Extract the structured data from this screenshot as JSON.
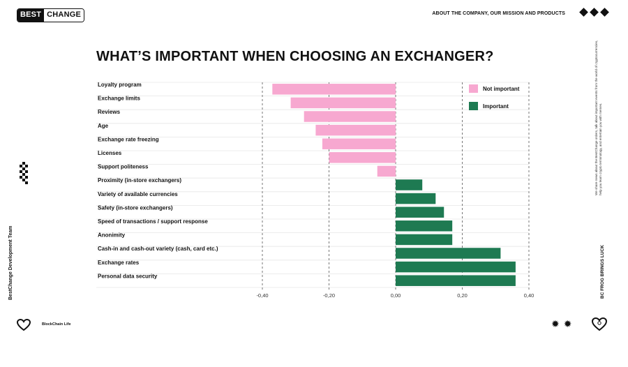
{
  "header": {
    "logo_best": "BEST",
    "logo_change": "CHANGE",
    "nav_text": "ABOUT THE COMPANY, OUR MISSION AND PRODUCTS"
  },
  "sidebar_left": {
    "vertical_text": "BestChange Development Team",
    "footer_text": "BlockChain Life"
  },
  "sidebar_right": {
    "small_text": "We share news about the BestChange orders, talk about important events from the world of cryptocurrencies, help you learn crypto terminology, and entertain you with memes.",
    "slogan": "BC FROG BRINGS LUCK"
  },
  "icons": [
    "diamond-icon",
    "heart-icon",
    "pixel-mascot-icon",
    "sparkle-icon"
  ],
  "colors": {
    "not_important": "#f7a8d0",
    "important": "#1e7a52",
    "text": "#111111"
  },
  "chart_data": {
    "type": "bar",
    "orientation": "horizontal",
    "title": "WHAT’S IMPORTANT WHEN CHOOSING AN EXCHANGER?",
    "categories": [
      "Loyalty program",
      "Exchange limits",
      "Reviews",
      "Age",
      "Exchange rate freezing",
      "Licenses",
      "Support politeness",
      "Proximity (in-store exchangers)",
      "Variety of available currencies",
      "Safety (in-store exchangers)",
      "Speed of transactions / support response",
      "Anonimity",
      "Cash-in and cash-out variety (cash, card etc.)",
      "Exchange rates",
      "Personal data security"
    ],
    "values": [
      -0.37,
      -0.315,
      -0.275,
      -0.24,
      -0.22,
      -0.2,
      -0.055,
      0.08,
      0.12,
      0.145,
      0.17,
      0.17,
      0.315,
      0.36,
      0.36
    ],
    "series": [
      {
        "name": "Not important",
        "color": "#f7a8d0"
      },
      {
        "name": "Important",
        "color": "#1e7a52"
      }
    ],
    "xlim": [
      -0.4,
      0.4
    ],
    "xticks": [
      "-0,40",
      "-0,20",
      "0,00",
      "0,20",
      "0,40"
    ],
    "xtick_values": [
      -0.4,
      -0.2,
      0,
      0.2,
      0.4
    ],
    "legend_position": "top-right",
    "grid": true
  }
}
